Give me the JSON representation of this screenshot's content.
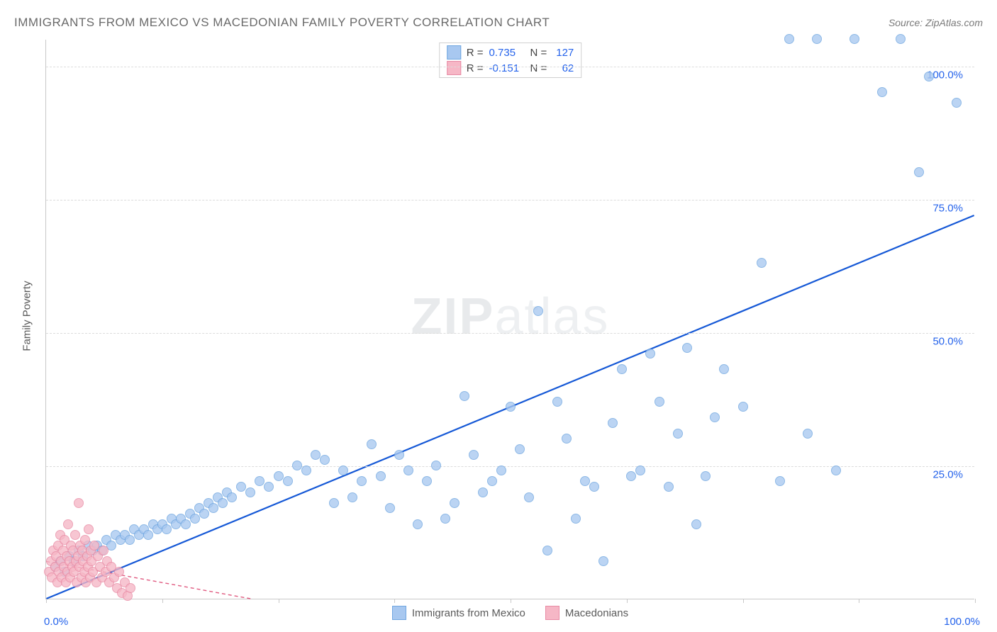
{
  "header": {
    "title": "IMMIGRANTS FROM MEXICO VS MACEDONIAN FAMILY POVERTY CORRELATION CHART",
    "source": "Source: ZipAtlas.com"
  },
  "chart": {
    "type": "scatter",
    "ylabel": "Family Poverty",
    "xlim": [
      0,
      100
    ],
    "ylim": [
      0,
      105
    ],
    "ytick_labels": [
      "25.0%",
      "50.0%",
      "75.0%",
      "100.0%"
    ],
    "ytick_values": [
      25,
      50,
      75,
      100
    ],
    "xtick_positions": [
      0,
      12.5,
      25,
      37.5,
      50,
      62.5,
      75,
      87.5,
      100
    ],
    "xaxis_left_label": "0.0%",
    "xaxis_right_label": "100.0%",
    "grid_color": "#dcdcdc",
    "background_color": "#ffffff",
    "watermark": "ZIPatlas",
    "marker_radius": 7,
    "marker_stroke_width": 1,
    "series": [
      {
        "name": "Immigrants from Mexico",
        "color_fill": "#a8c8f0",
        "color_stroke": "#6fa6e0",
        "trend_color": "#1558d6",
        "trend_dash": "none",
        "trend_width": 2.2,
        "trend_line": {
          "x1": 0,
          "y1": 0,
          "x2": 100,
          "y2": 72
        },
        "R": "0.735",
        "N": "127",
        "points": [
          [
            1,
            6
          ],
          [
            1.5,
            7
          ],
          [
            2,
            5
          ],
          [
            2.5,
            8
          ],
          [
            3,
            7
          ],
          [
            3.5,
            9
          ],
          [
            4,
            8
          ],
          [
            4.5,
            10
          ],
          [
            5,
            9
          ],
          [
            5.5,
            10
          ],
          [
            6,
            9
          ],
          [
            6.5,
            11
          ],
          [
            7,
            10
          ],
          [
            7.5,
            12
          ],
          [
            8,
            11
          ],
          [
            8.5,
            12
          ],
          [
            9,
            11
          ],
          [
            9.5,
            13
          ],
          [
            10,
            12
          ],
          [
            10.5,
            13
          ],
          [
            11,
            12
          ],
          [
            11.5,
            14
          ],
          [
            12,
            13
          ],
          [
            12.5,
            14
          ],
          [
            13,
            13
          ],
          [
            13.5,
            15
          ],
          [
            14,
            14
          ],
          [
            14.5,
            15
          ],
          [
            15,
            14
          ],
          [
            15.5,
            16
          ],
          [
            16,
            15
          ],
          [
            16.5,
            17
          ],
          [
            17,
            16
          ],
          [
            17.5,
            18
          ],
          [
            18,
            17
          ],
          [
            18.5,
            19
          ],
          [
            19,
            18
          ],
          [
            19.5,
            20
          ],
          [
            20,
            19
          ],
          [
            21,
            21
          ],
          [
            22,
            20
          ],
          [
            23,
            22
          ],
          [
            24,
            21
          ],
          [
            25,
            23
          ],
          [
            26,
            22
          ],
          [
            27,
            25
          ],
          [
            28,
            24
          ],
          [
            29,
            27
          ],
          [
            30,
            26
          ],
          [
            31,
            18
          ],
          [
            32,
            24
          ],
          [
            33,
            19
          ],
          [
            34,
            22
          ],
          [
            35,
            29
          ],
          [
            36,
            23
          ],
          [
            37,
            17
          ],
          [
            38,
            27
          ],
          [
            39,
            24
          ],
          [
            40,
            14
          ],
          [
            41,
            22
          ],
          [
            42,
            25
          ],
          [
            43,
            15
          ],
          [
            44,
            18
          ],
          [
            45,
            38
          ],
          [
            46,
            27
          ],
          [
            47,
            20
          ],
          [
            48,
            22
          ],
          [
            49,
            24
          ],
          [
            50,
            36
          ],
          [
            51,
            28
          ],
          [
            52,
            19
          ],
          [
            53,
            54
          ],
          [
            54,
            9
          ],
          [
            55,
            37
          ],
          [
            56,
            30
          ],
          [
            57,
            15
          ],
          [
            58,
            22
          ],
          [
            59,
            21
          ],
          [
            60,
            7
          ],
          [
            61,
            33
          ],
          [
            62,
            43
          ],
          [
            63,
            23
          ],
          [
            64,
            24
          ],
          [
            65,
            46
          ],
          [
            66,
            37
          ],
          [
            67,
            21
          ],
          [
            68,
            31
          ],
          [
            69,
            47
          ],
          [
            70,
            14
          ],
          [
            71,
            23
          ],
          [
            72,
            34
          ],
          [
            73,
            43
          ],
          [
            75,
            36
          ],
          [
            77,
            63
          ],
          [
            79,
            22
          ],
          [
            80,
            105
          ],
          [
            82,
            31
          ],
          [
            83,
            105
          ],
          [
            85,
            24
          ],
          [
            87,
            105
          ],
          [
            90,
            95
          ],
          [
            92,
            105
          ],
          [
            94,
            80
          ],
          [
            95,
            98
          ],
          [
            98,
            93
          ]
        ]
      },
      {
        "name": "Macedonians",
        "color_fill": "#f6b7c6",
        "color_stroke": "#e88aa4",
        "trend_color": "#e05a80",
        "trend_dash": "5,4",
        "trend_width": 1.4,
        "trend_line": {
          "x1": 0,
          "y1": 7,
          "x2": 22,
          "y2": 0
        },
        "R": "-0.151",
        "N": "62",
        "points": [
          [
            0.3,
            5
          ],
          [
            0.5,
            7
          ],
          [
            0.6,
            4
          ],
          [
            0.8,
            9
          ],
          [
            1.0,
            6
          ],
          [
            1.1,
            8
          ],
          [
            1.2,
            3
          ],
          [
            1.3,
            10
          ],
          [
            1.4,
            5
          ],
          [
            1.5,
            12
          ],
          [
            1.6,
            7
          ],
          [
            1.7,
            4
          ],
          [
            1.8,
            9
          ],
          [
            1.9,
            6
          ],
          [
            2.0,
            11
          ],
          [
            2.1,
            3
          ],
          [
            2.2,
            8
          ],
          [
            2.3,
            5
          ],
          [
            2.4,
            14
          ],
          [
            2.5,
            7
          ],
          [
            2.6,
            4
          ],
          [
            2.7,
            10
          ],
          [
            2.8,
            6
          ],
          [
            2.9,
            9
          ],
          [
            3.0,
            5
          ],
          [
            3.1,
            12
          ],
          [
            3.2,
            7
          ],
          [
            3.3,
            3
          ],
          [
            3.4,
            8
          ],
          [
            3.5,
            18
          ],
          [
            3.6,
            6
          ],
          [
            3.7,
            10
          ],
          [
            3.8,
            4
          ],
          [
            3.9,
            9
          ],
          [
            4.0,
            7
          ],
          [
            4.1,
            5
          ],
          [
            4.2,
            11
          ],
          [
            4.3,
            3
          ],
          [
            4.4,
            8
          ],
          [
            4.5,
            6
          ],
          [
            4.6,
            13
          ],
          [
            4.7,
            4
          ],
          [
            4.8,
            9
          ],
          [
            4.9,
            7
          ],
          [
            5.0,
            5
          ],
          [
            5.2,
            10
          ],
          [
            5.4,
            3
          ],
          [
            5.6,
            8
          ],
          [
            5.8,
            6
          ],
          [
            6.0,
            4
          ],
          [
            6.2,
            9
          ],
          [
            6.4,
            5
          ],
          [
            6.6,
            7
          ],
          [
            6.8,
            3
          ],
          [
            7.0,
            6
          ],
          [
            7.3,
            4
          ],
          [
            7.6,
            2
          ],
          [
            7.9,
            5
          ],
          [
            8.2,
            1
          ],
          [
            8.5,
            3
          ],
          [
            8.8,
            0.5
          ],
          [
            9.1,
            2
          ]
        ]
      }
    ],
    "legend_bottom": [
      {
        "label": "Immigrants from Mexico",
        "fill": "#a8c8f0",
        "stroke": "#6fa6e0"
      },
      {
        "label": "Macedonians",
        "fill": "#f6b7c6",
        "stroke": "#e88aa4"
      }
    ]
  }
}
